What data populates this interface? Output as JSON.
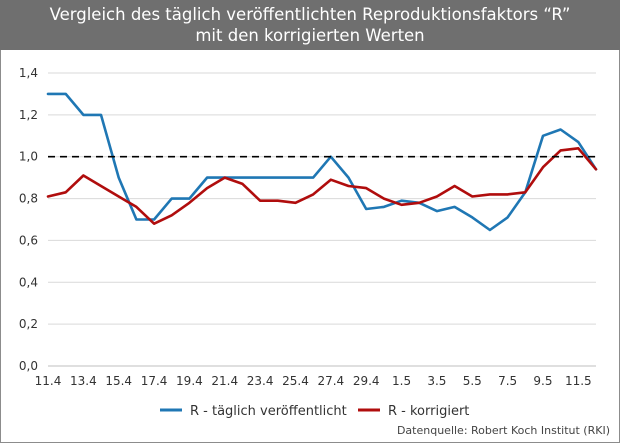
{
  "title_lines": [
    "Vergleich des täglich veröffentlichten Reproduktionsfaktors “R”",
    "mit den korrigierten Werten"
  ],
  "source": "Datenquelle: Robert Koch Institut (RKI)",
  "colors": {
    "series_1": "#1f77b4",
    "series_2": "#b00d0d",
    "grid": "#d9d9d9",
    "reference": "#000000",
    "title_bg": "#6f6f6f"
  },
  "chart_data": {
    "type": "line",
    "title": "Vergleich des täglich veröffentlichten Reproduktionsfaktors “R” mit den korrigierten Werten",
    "xlabel": "",
    "ylabel": "",
    "ylim": [
      0,
      1.4
    ],
    "y_ticks": [
      "0,0",
      "0,2",
      "0,4",
      "0,6",
      "0,8",
      "1,0",
      "1,2",
      "1,4"
    ],
    "x_tick_labels": [
      "11.4",
      "13.4",
      "15.4",
      "17.4",
      "19.4",
      "21.4",
      "23.4",
      "25.4",
      "27.4",
      "29.4",
      "1.5",
      "3.5",
      "5.5",
      "7.5",
      "9.5",
      "11.5"
    ],
    "x": [
      "11.4",
      "12.4",
      "13.4",
      "14.4",
      "15.4",
      "16.4",
      "17.4",
      "18.4",
      "19.4",
      "20.4",
      "21.4",
      "22.4",
      "23.4",
      "24.4",
      "25.4",
      "26.4",
      "27.4",
      "28.4",
      "29.4",
      "30.4",
      "1.5",
      "2.5",
      "3.5",
      "4.5",
      "5.5",
      "6.5",
      "7.5",
      "8.5",
      "9.5",
      "10.5",
      "11.5",
      "12.5"
    ],
    "reference_line": 1.0,
    "grid": true,
    "legend_position": "bottom",
    "series": [
      {
        "name": "R - täglich veröffentlicht",
        "color": "#1f77b4",
        "values": [
          1.3,
          1.3,
          1.2,
          1.2,
          0.9,
          0.7,
          0.7,
          0.8,
          0.8,
          0.9,
          0.9,
          0.9,
          0.9,
          0.9,
          0.9,
          0.9,
          1.0,
          0.9,
          0.75,
          0.76,
          0.79,
          0.78,
          0.74,
          0.76,
          0.71,
          0.65,
          0.71,
          0.83,
          1.1,
          1.13,
          1.07,
          0.94
        ]
      },
      {
        "name": "R - korrigiert",
        "color": "#b00d0d",
        "values": [
          0.81,
          0.83,
          0.91,
          0.86,
          0.81,
          0.76,
          0.68,
          0.72,
          0.78,
          0.85,
          0.9,
          0.87,
          0.79,
          0.79,
          0.78,
          0.82,
          0.89,
          0.86,
          0.85,
          0.8,
          0.77,
          0.78,
          0.81,
          0.86,
          0.81,
          0.82,
          0.82,
          0.83,
          0.95,
          1.03,
          1.04,
          0.94
        ]
      }
    ]
  }
}
